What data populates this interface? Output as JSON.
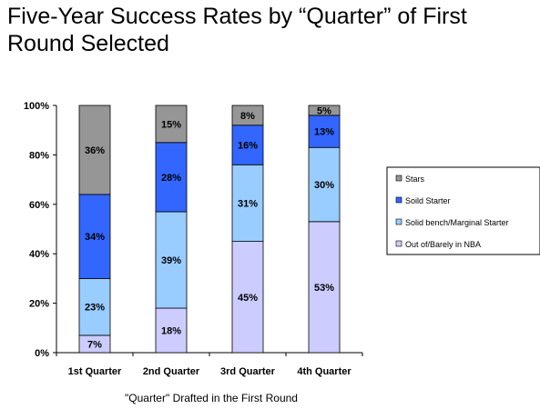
{
  "title": "Five-Year Success Rates by “Quarter” of First Round Selected",
  "chart_data": {
    "type": "stacked-bar",
    "categories": [
      "1st Quarter",
      "2nd Quarter",
      "3rd Quarter",
      "4th Quarter"
    ],
    "series": [
      {
        "name": "Out of/Barely in NBA",
        "values": [
          7,
          18,
          45,
          53
        ],
        "labels": [
          "7%",
          "18%",
          "45%",
          "53%"
        ],
        "color": "#ccccff"
      },
      {
        "name": "Solid bench/Marginal Starter",
        "values": [
          23,
          39,
          31,
          30
        ],
        "labels": [
          "23%",
          "39%",
          "31%",
          "30%"
        ],
        "color": "#99ccff"
      },
      {
        "name": "Soild Starter",
        "values": [
          34,
          28,
          16,
          13
        ],
        "labels": [
          "34%",
          "28%",
          "16%",
          "13%"
        ],
        "color": "#3366ff"
      },
      {
        "name": "Stars",
        "values": [
          36,
          15,
          8,
          5
        ],
        "labels": [
          "36%",
          "15%",
          "8%",
          "5%"
        ],
        "color": "#969696"
      }
    ],
    "xlabel": "\"Quarter\" Drafted in the First Round",
    "ylabel": "",
    "ylim": [
      0,
      100
    ],
    "yticks": [
      "0%",
      "20%",
      "40%",
      "60%",
      "80%",
      "100%"
    ],
    "legend": [
      "Stars",
      "Soild Starter",
      "Solid bench/Marginal Starter",
      "Out of/Barely in NBA"
    ],
    "legend_position": "right",
    "grid": false
  }
}
